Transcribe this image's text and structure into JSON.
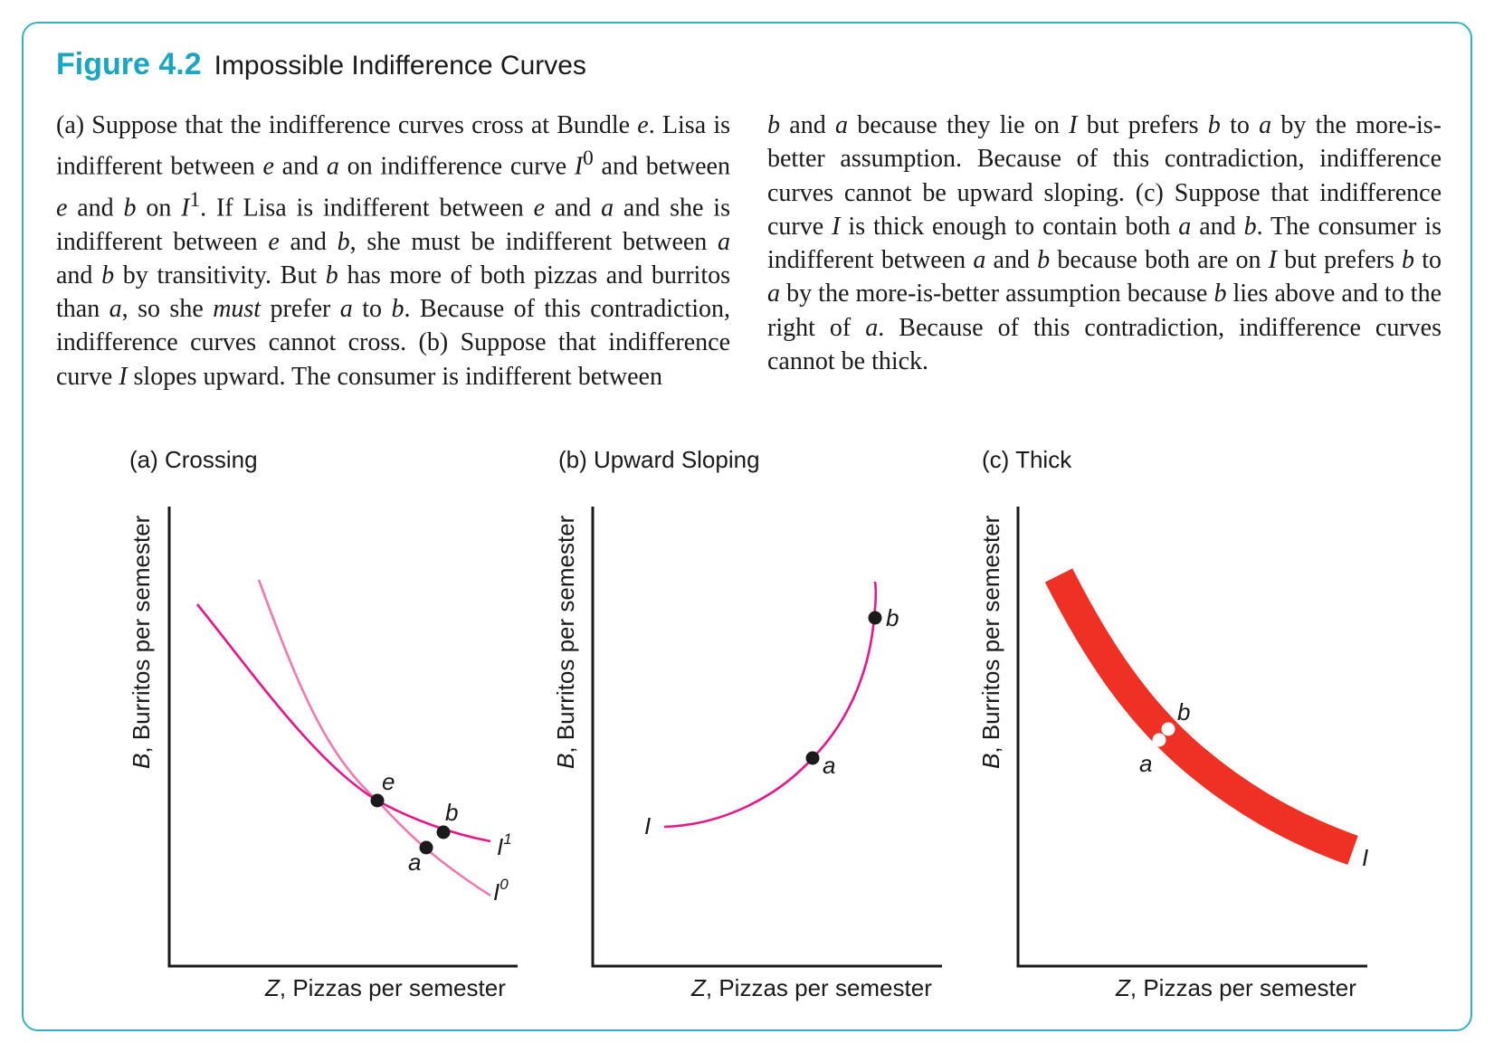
{
  "figure": {
    "number": "Figure 4.2",
    "title": "Impossible Indifference Curves"
  },
  "caption": {
    "left": "(a) Suppose that the indifference curves cross at Bundle <i>e</i>. Lisa is indifferent between <i>e</i> and <i>a</i> on indifference curve <i>I</i><sup>0</sup> and between <i>e</i> and <i>b</i> on <i>I</i><sup>1</sup>. If Lisa is indifferent between <i>e</i> and <i>a</i> and she is indifferent between <i>e</i> and <i>b</i>, she must be indifferent between <i>a</i> and <i>b</i> by transitivity. But <i>b</i> has more of both pizzas and burritos than <i>a</i>, so she <i>must</i> prefer <i>a</i> to <i>b</i>. Because of this contradiction, indifference curves cannot cross. (b) Suppose that indifference curve <i>I</i> slopes upward. The consumer is indifferent between",
    "right": "<i>b</i> and <i>a</i> because they lie on <i>I</i> but prefers <i>b</i> to <i>a</i> by the more-is-better assumption. Because of this contradiction, indifference curves cannot be upward sloping. (c) Suppose that indifference curve <i>I</i> is thick enough to contain both <i>a</i> and <i>b</i>. The consumer is indifferent between <i>a</i> and <i>b</i> because both are on <i>I</i> but prefers <i>b</i> to <i>a</i> by the more-is-better assumption because <i>b</i> lies above and to the right of <i>a</i>. Because of this contradiction, indifference curves cannot be thick."
  },
  "axes": {
    "y_var": "B",
    "y_text": ", Burritos per semester",
    "x_var": "Z",
    "x_text": ", Pizzas per semester"
  },
  "panels": [
    {
      "title": "(a) Crossing",
      "curves": [
        {
          "name": "I",
          "sup": "1",
          "color": "#e6178a"
        },
        {
          "name": "I",
          "sup": "0",
          "color": "#f07ab0"
        }
      ],
      "points": [
        "e",
        "a",
        "b"
      ]
    },
    {
      "title": "(b) Upward Sloping",
      "curves": [
        {
          "name": "I",
          "color": "#e6178a"
        }
      ],
      "points": [
        "a",
        "b"
      ]
    },
    {
      "title": "(c) Thick",
      "curves": [
        {
          "name": "I",
          "color": "#ee3124"
        }
      ],
      "points": [
        "a",
        "b"
      ]
    }
  ],
  "colors": {
    "accent": "#1aa5c0",
    "frame": "#36b1c4",
    "curve_dark": "#e6178a",
    "curve_light": "#f07ab0",
    "thick_band": "#ee3124"
  }
}
